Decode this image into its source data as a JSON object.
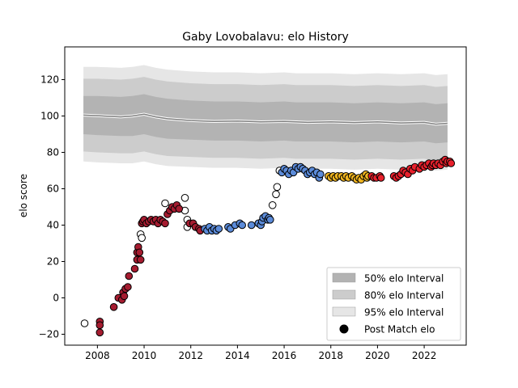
{
  "chart_data": {
    "type": "scatter",
    "title": "Gaby Lovobalavu: elo History",
    "xlabel": "",
    "ylabel": "elo score",
    "xlim": [
      2006.6,
      2023.8
    ],
    "ylim": [
      -26,
      138
    ],
    "x_ticks": [
      2008,
      2010,
      2012,
      2014,
      2016,
      2018,
      2020,
      2022
    ],
    "y_ticks": [
      -20,
      0,
      20,
      40,
      60,
      80,
      100,
      120
    ],
    "grid": false,
    "legend_position": "lower-right",
    "legend": [
      {
        "label": "50% elo Interval",
        "kind": "band50"
      },
      {
        "label": "80% elo Interval",
        "kind": "band80"
      },
      {
        "label": "95% elo Interval",
        "kind": "band95"
      },
      {
        "label": "Post Match elo",
        "kind": "marker"
      }
    ],
    "colors": {
      "band50": "#b3b3b3",
      "band80": "#cccccc",
      "band95": "#e6e6e6",
      "mean_line": "#808080",
      "white": "#ffffff",
      "red": "#a51c30",
      "blue": "#5b8bd9",
      "yellow": "#f2b620",
      "crimson": "#e8202c"
    },
    "band": {
      "x": [
        2007.4,
        2008,
        2009,
        2009.5,
        2010,
        2010.5,
        2011,
        2012,
        2013,
        2014,
        2015,
        2016,
        2016.5,
        2017,
        2018,
        2019,
        2020,
        2021,
        2022,
        2022.5,
        2023
      ],
      "mean": [
        100.5,
        100.2,
        99.5,
        100,
        101,
        99.5,
        98.5,
        97.5,
        97,
        97.2,
        96.8,
        97,
        96.8,
        96.5,
        96.8,
        96.4,
        96.8,
        96.2,
        96.5,
        95.5,
        96
      ],
      "q25": [
        90,
        89.5,
        89,
        89,
        90,
        88.5,
        87.5,
        87,
        86.5,
        86.5,
        86,
        86.5,
        86,
        86,
        86,
        85.5,
        86,
        85.5,
        86,
        85,
        85.5
      ],
      "q75": [
        111,
        111,
        110.5,
        111,
        112,
        110.5,
        109.5,
        108.5,
        108,
        108,
        107.5,
        108,
        107.5,
        107.5,
        107.5,
        107,
        107.5,
        107,
        107.5,
        106.5,
        107
      ],
      "q10": [
        80.5,
        80,
        79.5,
        79.5,
        80.5,
        79,
        78,
        77.5,
        77,
        77,
        76.5,
        77,
        76.5,
        76.5,
        76.5,
        76,
        76.5,
        76,
        76.5,
        75.5,
        76
      ],
      "q90": [
        120.5,
        120.5,
        120,
        120.5,
        121.5,
        120,
        119,
        118,
        117.5,
        117.5,
        117,
        117.5,
        117,
        117,
        117,
        116.5,
        117,
        116.5,
        117,
        116,
        116.5
      ],
      "q2_5": [
        75,
        74.5,
        74,
        74,
        75,
        73.5,
        72.5,
        72,
        71.5,
        71.5,
        71,
        71.5,
        71,
        71,
        71,
        70.5,
        71,
        70.5,
        71,
        70,
        70.5
      ],
      "q97_5": [
        127,
        127,
        126.5,
        127,
        128,
        126.5,
        125.5,
        124.5,
        124,
        124,
        123.5,
        124,
        123.5,
        123.5,
        123.5,
        123,
        123.5,
        123,
        123.5,
        122.5,
        123
      ]
    },
    "series": [
      {
        "color": "white",
        "points": [
          [
            2007.45,
            -14
          ],
          [
            2009.85,
            35
          ],
          [
            2009.9,
            33
          ],
          [
            2010.9,
            52
          ],
          [
            2011.75,
            55
          ],
          [
            2011.75,
            48
          ],
          [
            2011.85,
            43
          ],
          [
            2011.85,
            39
          ],
          [
            2015.5,
            51
          ],
          [
            2015.7,
            61
          ],
          [
            2015.65,
            57
          ],
          [
            2015.8,
            70
          ]
        ]
      },
      {
        "color": "red",
        "points": [
          [
            2008.1,
            -13
          ],
          [
            2008.1,
            -15
          ],
          [
            2008.1,
            -19
          ],
          [
            2008.7,
            -5
          ],
          [
            2008.9,
            0
          ],
          [
            2009.05,
            -1
          ],
          [
            2009.1,
            3
          ],
          [
            2009.15,
            1
          ],
          [
            2009.2,
            5
          ],
          [
            2009.3,
            6
          ],
          [
            2009.35,
            12
          ],
          [
            2009.6,
            16
          ],
          [
            2009.7,
            21
          ],
          [
            2009.7,
            25
          ],
          [
            2009.75,
            28
          ],
          [
            2009.8,
            25
          ],
          [
            2009.85,
            21
          ],
          [
            2009.9,
            41
          ],
          [
            2009.95,
            42
          ],
          [
            2010.0,
            43
          ],
          [
            2010.1,
            41
          ],
          [
            2010.2,
            42
          ],
          [
            2010.3,
            43
          ],
          [
            2010.4,
            42
          ],
          [
            2010.5,
            43
          ],
          [
            2010.6,
            41
          ],
          [
            2010.7,
            43
          ],
          [
            2010.8,
            42
          ],
          [
            2010.9,
            41
          ],
          [
            2011.0,
            46
          ],
          [
            2011.1,
            48
          ],
          [
            2011.2,
            50
          ],
          [
            2011.3,
            49
          ],
          [
            2011.4,
            51
          ],
          [
            2011.5,
            49
          ],
          [
            2011.95,
            41
          ],
          [
            2012.1,
            41
          ],
          [
            2012.2,
            39
          ],
          [
            2012.35,
            38
          ],
          [
            2012.4,
            37
          ]
        ]
      },
      {
        "color": "blue",
        "points": [
          [
            2012.6,
            38
          ],
          [
            2012.7,
            37
          ],
          [
            2012.8,
            39
          ],
          [
            2012.9,
            37
          ],
          [
            2013.0,
            38
          ],
          [
            2013.1,
            37
          ],
          [
            2013.2,
            38
          ],
          [
            2013.6,
            39
          ],
          [
            2013.7,
            38
          ],
          [
            2013.9,
            40
          ],
          [
            2014.1,
            41
          ],
          [
            2014.2,
            40
          ],
          [
            2014.6,
            40
          ],
          [
            2014.9,
            41
          ],
          [
            2015.0,
            40
          ],
          [
            2015.05,
            42
          ],
          [
            2015.1,
            44
          ],
          [
            2015.2,
            45
          ],
          [
            2015.3,
            43
          ],
          [
            2015.35,
            44
          ],
          [
            2015.4,
            43
          ],
          [
            2015.9,
            69
          ],
          [
            2016.0,
            71
          ],
          [
            2016.1,
            70
          ],
          [
            2016.2,
            68
          ],
          [
            2016.3,
            70
          ],
          [
            2016.4,
            69
          ],
          [
            2016.5,
            72
          ],
          [
            2016.6,
            71
          ],
          [
            2016.7,
            72
          ],
          [
            2016.8,
            71
          ],
          [
            2016.9,
            70
          ],
          [
            2017.0,
            68
          ],
          [
            2017.1,
            69
          ],
          [
            2017.2,
            70
          ],
          [
            2017.3,
            68
          ],
          [
            2017.4,
            69
          ],
          [
            2017.5,
            66
          ],
          [
            2017.55,
            68
          ]
        ]
      },
      {
        "color": "yellow",
        "points": [
          [
            2017.9,
            67
          ],
          [
            2018.0,
            66
          ],
          [
            2018.1,
            67
          ],
          [
            2018.2,
            66
          ],
          [
            2018.3,
            67
          ],
          [
            2018.45,
            67
          ],
          [
            2018.55,
            66
          ],
          [
            2018.65,
            67
          ],
          [
            2018.75,
            66
          ],
          [
            2018.9,
            67
          ],
          [
            2019.0,
            66
          ],
          [
            2019.1,
            65
          ],
          [
            2019.2,
            66
          ],
          [
            2019.3,
            65
          ],
          [
            2019.4,
            67
          ],
          [
            2019.5,
            68
          ],
          [
            2019.55,
            66
          ],
          [
            2019.6,
            67
          ]
        ]
      },
      {
        "color": "crimson",
        "points": [
          [
            2019.75,
            67
          ],
          [
            2019.85,
            66
          ],
          [
            2019.95,
            66
          ],
          [
            2020.1,
            67
          ],
          [
            2020.15,
            66
          ],
          [
            2020.7,
            67
          ],
          [
            2020.8,
            66
          ],
          [
            2020.9,
            67
          ],
          [
            2021.0,
            68
          ],
          [
            2021.1,
            70
          ],
          [
            2021.2,
            69
          ],
          [
            2021.3,
            68
          ],
          [
            2021.4,
            71
          ],
          [
            2021.5,
            70
          ],
          [
            2021.6,
            72
          ],
          [
            2021.8,
            71
          ],
          [
            2021.9,
            73
          ],
          [
            2022.0,
            72
          ],
          [
            2022.1,
            73
          ],
          [
            2022.2,
            74
          ],
          [
            2022.3,
            72
          ],
          [
            2022.35,
            73
          ],
          [
            2022.4,
            74
          ],
          [
            2022.5,
            73
          ],
          [
            2022.6,
            74
          ],
          [
            2022.7,
            73
          ],
          [
            2022.8,
            75
          ],
          [
            2022.9,
            76
          ],
          [
            2022.95,
            74
          ],
          [
            2023.0,
            75
          ],
          [
            2023.1,
            75
          ],
          [
            2023.15,
            74
          ]
        ]
      }
    ]
  }
}
